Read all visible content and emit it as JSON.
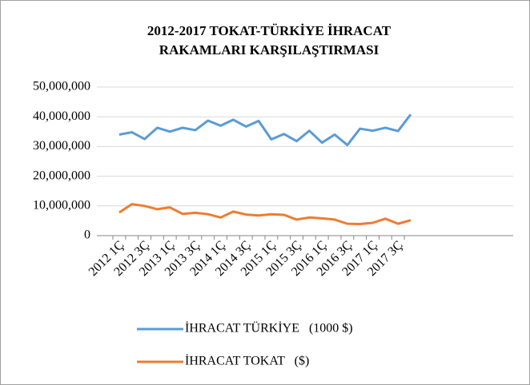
{
  "chart_data": {
    "type": "line",
    "title": "2012-2017 TOKAT-TÜRKİYE İHRACAT RAKAMLARI KARŞILAŞTIRMASI",
    "categories": [
      "2012 1Ç",
      null,
      "2012 3Ç",
      null,
      "2013 1Ç",
      null,
      "2013 3Ç",
      null,
      "2014 1Ç",
      null,
      "2014 3Ç",
      null,
      "2015 1Ç",
      null,
      "2015 3Ç",
      null,
      "2016 1Ç",
      null,
      "2016 3Ç",
      null,
      "2017 1Ç",
      null,
      "2017 3Ç",
      null
    ],
    "series": [
      {
        "name": "İHRACAT TÜRKİYE   (1000 $)",
        "color": "#5b9bd5",
        "values": [
          34000000,
          34800000,
          32500000,
          36300000,
          35000000,
          36300000,
          35500000,
          38700000,
          37000000,
          39000000,
          36700000,
          38600000,
          32400000,
          34200000,
          31800000,
          35300000,
          31300000,
          34000000,
          30500000,
          36000000,
          35300000,
          36300000,
          35200000,
          40800000
        ]
      },
      {
        "name": "İHRACAT TOKAT   ($)",
        "color": "#ed7d31",
        "values": [
          7800000,
          10600000,
          10000000,
          8900000,
          9500000,
          7300000,
          7700000,
          7200000,
          6100000,
          8100000,
          7100000,
          6800000,
          7200000,
          7000000,
          5400000,
          6100000,
          5800000,
          5400000,
          4000000,
          3900000,
          4300000,
          5700000,
          4000000,
          5200000
        ]
      }
    ],
    "ylim": [
      0,
      50000000
    ],
    "yticks": [
      0,
      {
        "value": 10000000,
        "label": "10,000,000"
      },
      {
        "value": 20000000,
        "label": "20,000,000"
      },
      {
        "value": 30000000,
        "label": "30,000,000"
      },
      {
        "value": 40000000,
        "label": "40,000,000"
      },
      {
        "value": 50000000,
        "label": "50,000,000"
      }
    ],
    "grid": true,
    "legend": "bottom"
  }
}
